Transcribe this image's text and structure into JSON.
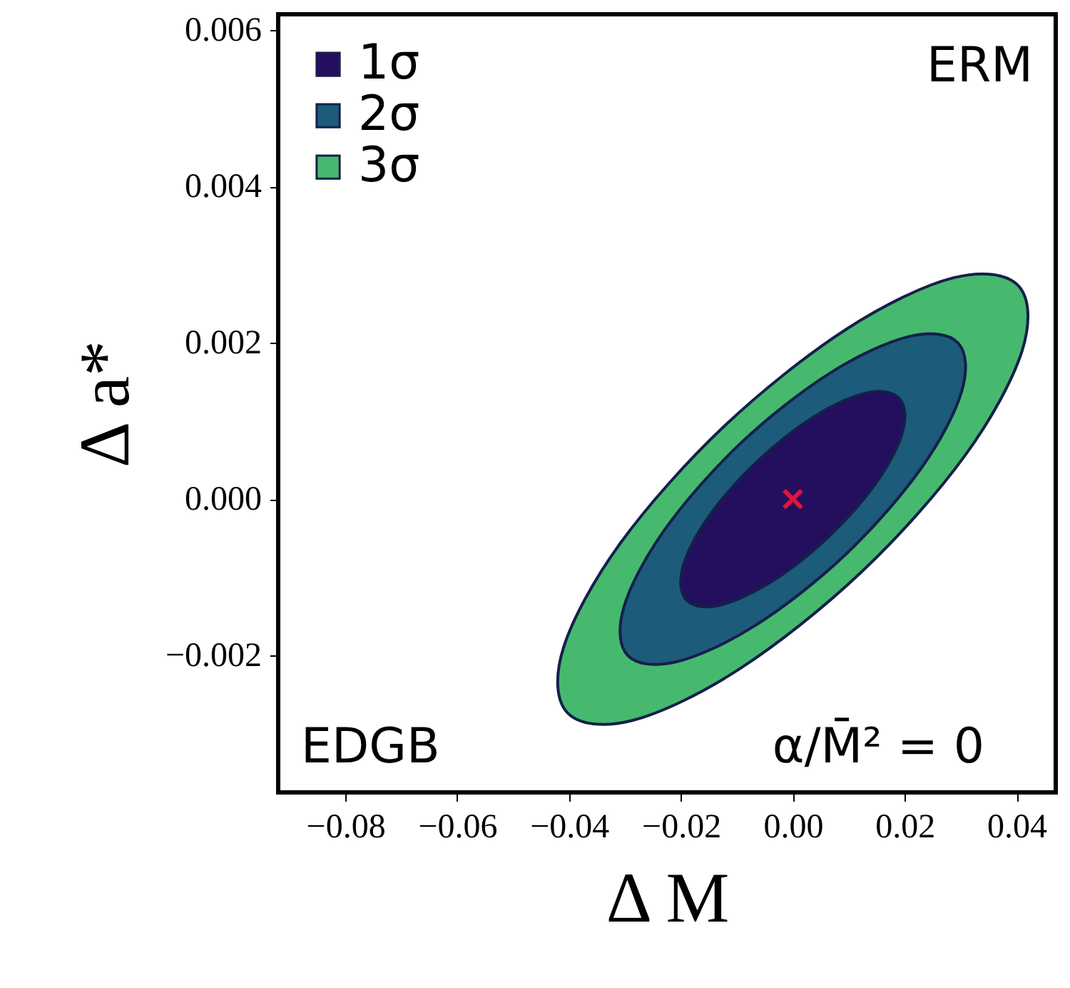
{
  "chart_data": {
    "type": "area",
    "xlabel": "Δ M",
    "ylabel": "Δ a*",
    "legend": "top left",
    "grid": false,
    "xlim": [
      -0.092,
      0.047
    ],
    "ylim": [
      -0.00375,
      0.0062
    ],
    "xticks": [
      {
        "value": -0.08,
        "label": "−0.08"
      },
      {
        "value": -0.06,
        "label": "−0.06"
      },
      {
        "value": -0.04,
        "label": "−0.04"
      },
      {
        "value": -0.02,
        "label": "−0.02"
      },
      {
        "value": 0,
        "label": "0.00"
      },
      {
        "value": 0.02,
        "label": "0.02"
      },
      {
        "value": 0.04,
        "label": "0.04"
      }
    ],
    "yticks": [
      {
        "value": -0.002,
        "label": "−0.002"
      },
      {
        "value": 0,
        "label": "0.000"
      },
      {
        "value": 0.002,
        "label": "0.002"
      },
      {
        "value": 0.004,
        "label": "0.004"
      },
      {
        "value": 0.006,
        "label": "0.006"
      }
    ],
    "series": [
      {
        "name": "1σ",
        "type": "area",
        "color": "#240f5e",
        "x": [
          0.019,
          0.0133,
          0.0039,
          -0.0064,
          -0.0151,
          -0.0197,
          -0.019,
          -0.0133,
          -0.0039,
          0.0064,
          0.0151,
          0.0197
        ],
        "values": [
          0.00129,
          0.00136,
          0.00106,
          0.00048,
          -0.00023,
          -0.00088,
          -0.00129,
          -0.00136,
          -0.00106,
          -0.00048,
          0.00023,
          0.00088
        ]
      },
      {
        "name": "2σ",
        "type": "area",
        "color": "#1d5b7a",
        "x": [
          0.0295,
          0.0208,
          0.0066,
          -0.0094,
          -0.0229,
          -0.0302,
          -0.0295,
          -0.0208,
          -0.0066,
          0.0094,
          0.0229,
          0.0302
        ],
        "values": [
          0.002,
          0.00208,
          0.00161,
          0.00071,
          -0.00039,
          -0.00138,
          -0.002,
          -0.00208,
          -0.00161,
          -0.00071,
          0.00039,
          0.00138
        ]
      },
      {
        "name": "3σ",
        "type": "area",
        "color": "#46b96f",
        "x": [
          0.0403,
          0.0287,
          0.0095,
          -0.0123,
          -0.0308,
          -0.041,
          -0.0403,
          -0.0287,
          -0.0095,
          0.0123,
          0.0308,
          0.041
        ],
        "values": [
          0.00273,
          0.00283,
          0.00217,
          0.00093,
          -0.00056,
          -0.0019,
          -0.00273,
          -0.00283,
          -0.00217,
          -0.00093,
          0.00056,
          0.0019
        ]
      },
      {
        "type": "scatter",
        "marker": "cross",
        "color": "#e0143c",
        "x": [
          0
        ],
        "values": [
          0
        ]
      }
    ],
    "annotations": [
      "ERM",
      "EDGB",
      "α/M̄² = 0"
    ]
  }
}
